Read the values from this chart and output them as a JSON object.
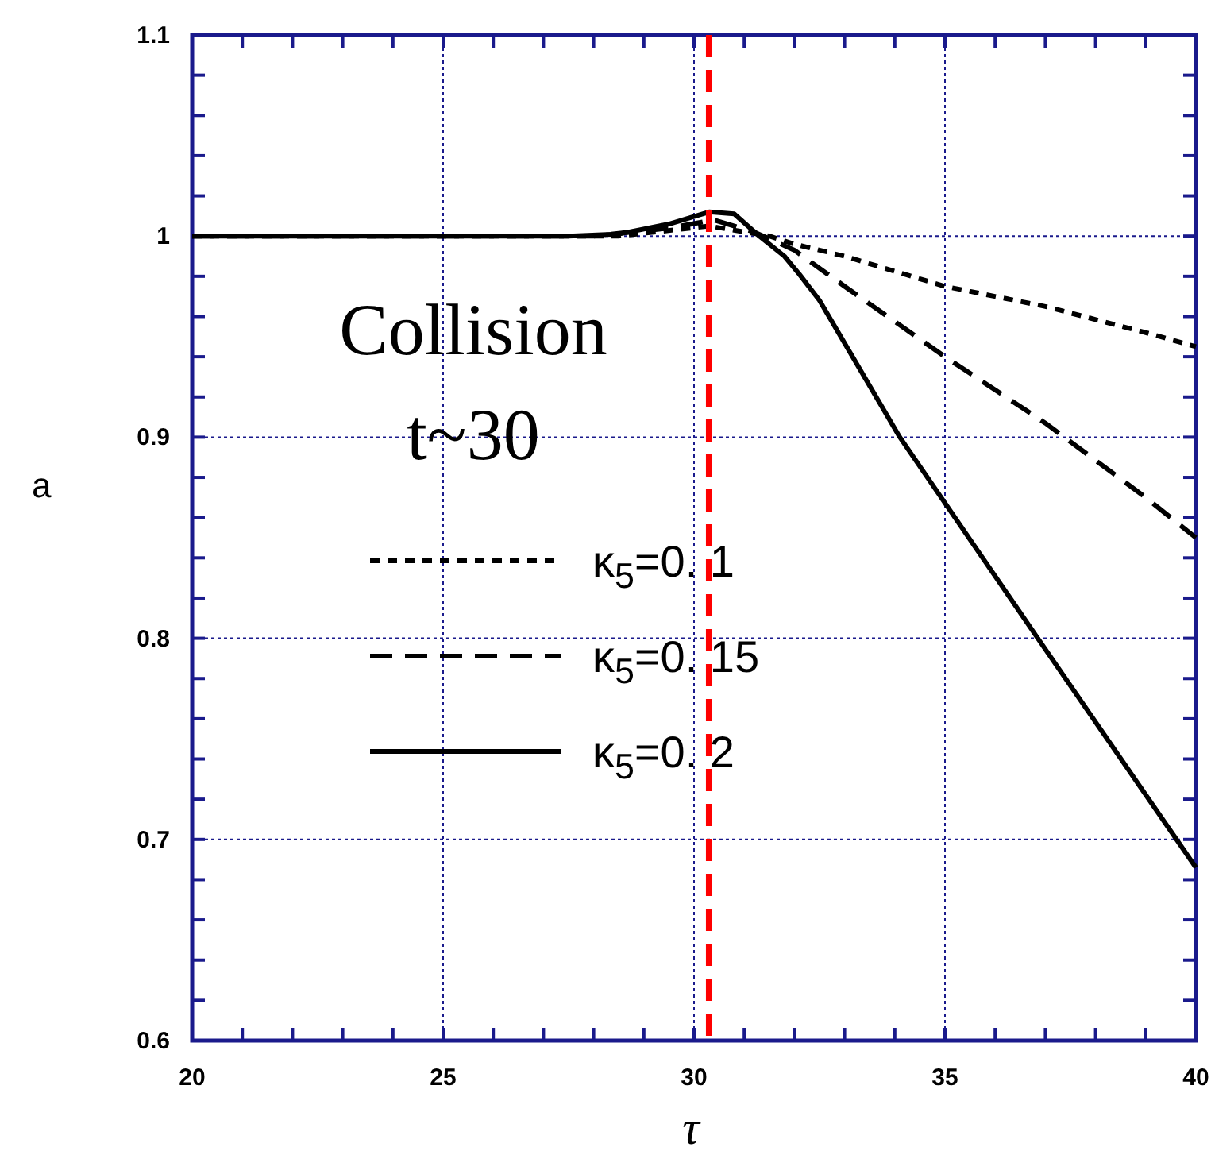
{
  "chart_data": {
    "type": "line",
    "xlabel": "τ",
    "ylabel": "a",
    "xlim": [
      20,
      40
    ],
    "ylim": [
      0.6,
      1.1
    ],
    "xticks": [
      20,
      {
        "value": 21,
        "label": null
      },
      {
        "value": 22,
        "label": null
      },
      {
        "value": 23,
        "label": null
      },
      {
        "value": 24,
        "label": null
      },
      25,
      {
        "value": 26,
        "label": null
      },
      {
        "value": 27,
        "label": null
      },
      {
        "value": 28,
        "label": null
      },
      {
        "value": 29,
        "label": null
      },
      30,
      {
        "value": 31,
        "label": null
      },
      {
        "value": 32,
        "label": null
      },
      {
        "value": 33,
        "label": null
      },
      {
        "value": 34,
        "label": null
      },
      35,
      {
        "value": 36,
        "label": null
      },
      {
        "value": 37,
        "label": null
      },
      {
        "value": 38,
        "label": null
      },
      {
        "value": 39,
        "label": null
      },
      40
    ],
    "yticks": [
      0.6,
      {
        "value": 0.62,
        "label": null
      },
      {
        "value": 0.64,
        "label": null
      },
      {
        "value": 0.66,
        "label": null
      },
      {
        "value": 0.68,
        "label": null
      },
      0.7,
      {
        "value": 0.72,
        "label": null
      },
      {
        "value": 0.74,
        "label": null
      },
      {
        "value": 0.76,
        "label": null
      },
      {
        "value": 0.78,
        "label": null
      },
      0.8,
      {
        "value": 0.82,
        "label": null
      },
      {
        "value": 0.84,
        "label": null
      },
      {
        "value": 0.86,
        "label": null
      },
      {
        "value": 0.88,
        "label": null
      },
      0.9,
      {
        "value": 0.92,
        "label": null
      },
      {
        "value": 0.94,
        "label": null
      },
      {
        "value": 0.96,
        "label": null
      },
      {
        "value": 0.98,
        "label": null
      },
      1,
      {
        "value": 1.02,
        "label": null
      },
      {
        "value": 1.04,
        "label": null
      },
      {
        "value": 1.06,
        "label": null
      },
      {
        "value": 1.08,
        "label": null
      },
      1.1
    ],
    "grid": true,
    "legend": "left",
    "series": [
      {
        "name": "κ$_{5}$=0. 1",
        "color": "#000000",
        "line_style": "dotted",
        "x": [
          20,
          28.5,
          30.3,
          31.5,
          32,
          33,
          35,
          37,
          39,
          40
        ],
        "values": [
          1,
          1,
          1.005,
          1.0,
          0.996,
          0.99,
          0.975,
          0.965,
          0.952,
          0.945
        ]
      },
      {
        "name": "κ$_{5}$=0. 15",
        "color": "#000000",
        "line_style": "dashed",
        "x": [
          20,
          28,
          29.5,
          30.4,
          31.2,
          32,
          33,
          35,
          37,
          39,
          40
        ],
        "values": [
          1,
          1,
          1.004,
          1.008,
          1.002,
          0.993,
          0.975,
          0.94,
          0.907,
          0.87,
          0.85
        ]
      },
      {
        "name": "κ$_{5}$=0. 2",
        "color": "#000000",
        "line_style": "solid",
        "x": [
          20,
          27.5,
          28.5,
          29.5,
          30.3,
          30.8,
          31.3,
          31.8,
          32.1,
          32.5,
          34.1,
          36.85,
          40
        ],
        "values": [
          1,
          1,
          1.001,
          1.006,
          1.012,
          1.011,
          1.0,
          0.99,
          0.981,
          0.968,
          0.9,
          0.8,
          0.686
        ]
      }
    ],
    "ref_lines": [
      {
        "axis": "x",
        "value": 30.3,
        "color": "#ff0000",
        "line_style": "dashed"
      }
    ],
    "annotations": [
      "Collision\nt~30"
    ]
  }
}
